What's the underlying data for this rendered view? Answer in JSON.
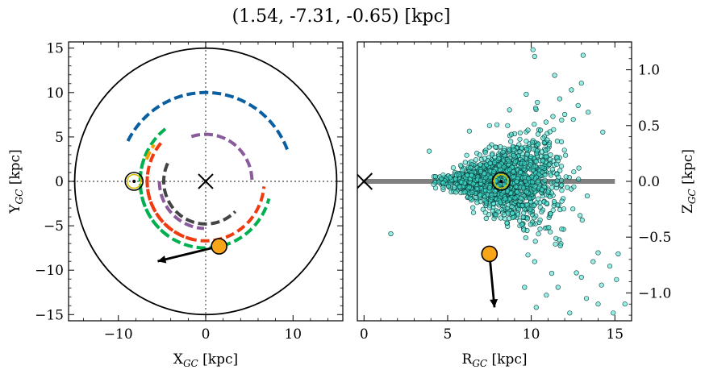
{
  "figure": {
    "title": "(1.54, -7.31, -0.65) [kpc]"
  },
  "chart_data": [
    {
      "type": "scatter",
      "panel": "left",
      "xlabel": {
        "main": "X",
        "sub": "GC",
        "unit": " [kpc]"
      },
      "ylabel": {
        "main": "Y",
        "sub": "GC",
        "unit": " [kpc]"
      },
      "xlim": [
        -15.7,
        15.7
      ],
      "ylim": [
        -15.7,
        15.7
      ],
      "xticks": [
        -10,
        0,
        10
      ],
      "xtick_labels": [
        "−10",
        "0",
        "10"
      ],
      "yticks": [
        15,
        10,
        5,
        0,
        -5,
        -10,
        -15
      ],
      "ytick_labels": [
        "15",
        "10",
        "5",
        "0",
        "−5",
        "−10",
        "−15"
      ],
      "boundary_circle_radius": 15,
      "galactic_center": [
        0,
        0
      ],
      "sun": [
        -8.2,
        0
      ],
      "object": [
        1.54,
        -7.31
      ],
      "velocity_arrow_end": [
        -5.5,
        -9.0
      ],
      "spiral_arms": [
        {
          "color": "#0a5fa0",
          "r": 10.0,
          "theta_start_deg": 153,
          "theta_end_deg": 20
        },
        {
          "color": "#00b050",
          "r": 7.5,
          "theta_start_deg": 128,
          "theta_end_deg": 345
        },
        {
          "color": "#f5a000",
          "r": 7.2,
          "theta_start_deg": 160,
          "theta_end_deg": 145
        },
        {
          "color": "#ee3b10",
          "r": 6.7,
          "theta_start_deg": 140,
          "theta_end_deg": 355
        },
        {
          "color": "#00b050",
          "r": 7.5,
          "theta_start_deg": 160,
          "theta_end_deg": 236
        },
        {
          "color": "#ee3b10",
          "r": 6.7,
          "theta_start_deg": 175,
          "theta_end_deg": 258
        },
        {
          "color": "#8a5a9b",
          "r": 5.3,
          "theta_start_deg": 108,
          "theta_end_deg": 0
        },
        {
          "color": "#8a5a9b",
          "r": 5.3,
          "theta_start_deg": 180,
          "theta_end_deg": 268
        },
        {
          "color": "#444444",
          "r": 4.8,
          "theta_start_deg": 155,
          "theta_end_deg": 315
        }
      ]
    },
    {
      "type": "scatter",
      "panel": "right",
      "xlabel": {
        "main": "R",
        "sub": "GC",
        "unit": " [kpc]"
      },
      "ylabel": {
        "main": "Z",
        "sub": "GC",
        "unit": " [kpc]"
      },
      "xlim": [
        -0.4,
        16.0
      ],
      "ylim": [
        -1.25,
        1.25
      ],
      "xticks": [
        0,
        5,
        10,
        15
      ],
      "xtick_labels": [
        "0",
        "5",
        "10",
        "15"
      ],
      "yticks": [
        1.0,
        0.5,
        0.0,
        -0.5,
        -1.0
      ],
      "ytick_labels": [
        "1.0",
        "0.5",
        "0.0",
        "−0.5",
        "−1.0"
      ],
      "disk_line": {
        "z": 0,
        "r_range": [
          0,
          15
        ],
        "color": "#808080"
      },
      "galactic_center": [
        0,
        0
      ],
      "sun": [
        8.2,
        0
      ],
      "object": [
        7.5,
        -0.65
      ],
      "velocity_arrow_end": [
        7.8,
        -1.13
      ],
      "point_color": "#40e0d0",
      "sample_count": 1500,
      "sample_center_r": 8.3,
      "outliers": [
        [
          10.1,
          1.18
        ],
        [
          10.2,
          1.12
        ],
        [
          13.1,
          1.13
        ],
        [
          11.4,
          0.95
        ],
        [
          13.0,
          0.88
        ],
        [
          12.4,
          0.82
        ],
        [
          11.7,
          0.74
        ],
        [
          12.8,
          0.68
        ],
        [
          13.4,
          0.62
        ],
        [
          9.7,
          0.78
        ],
        [
          8.7,
          0.64
        ],
        [
          3.9,
          0.27
        ],
        [
          1.6,
          -0.47
        ],
        [
          14.0,
          -0.64
        ],
        [
          13.7,
          -0.72
        ],
        [
          14.7,
          -0.76
        ],
        [
          13.0,
          -0.86
        ],
        [
          14.2,
          -0.93
        ],
        [
          15.1,
          -0.88
        ],
        [
          13.3,
          -1.05
        ],
        [
          14.0,
          -1.1
        ],
        [
          14.9,
          -1.18
        ],
        [
          15.6,
          -1.1
        ],
        [
          11.6,
          -0.95
        ],
        [
          12.7,
          -0.82
        ],
        [
          10.2,
          -0.72
        ],
        [
          9.8,
          -0.66
        ],
        [
          10.3,
          -1.13
        ],
        [
          10.9,
          -1.02
        ],
        [
          12.3,
          -1.18
        ],
        [
          9.6,
          -0.95
        ],
        [
          15.2,
          -0.65
        ],
        [
          7.5,
          0.5
        ],
        [
          6.3,
          0.45
        ],
        [
          12.0,
          0.6
        ]
      ]
    }
  ]
}
